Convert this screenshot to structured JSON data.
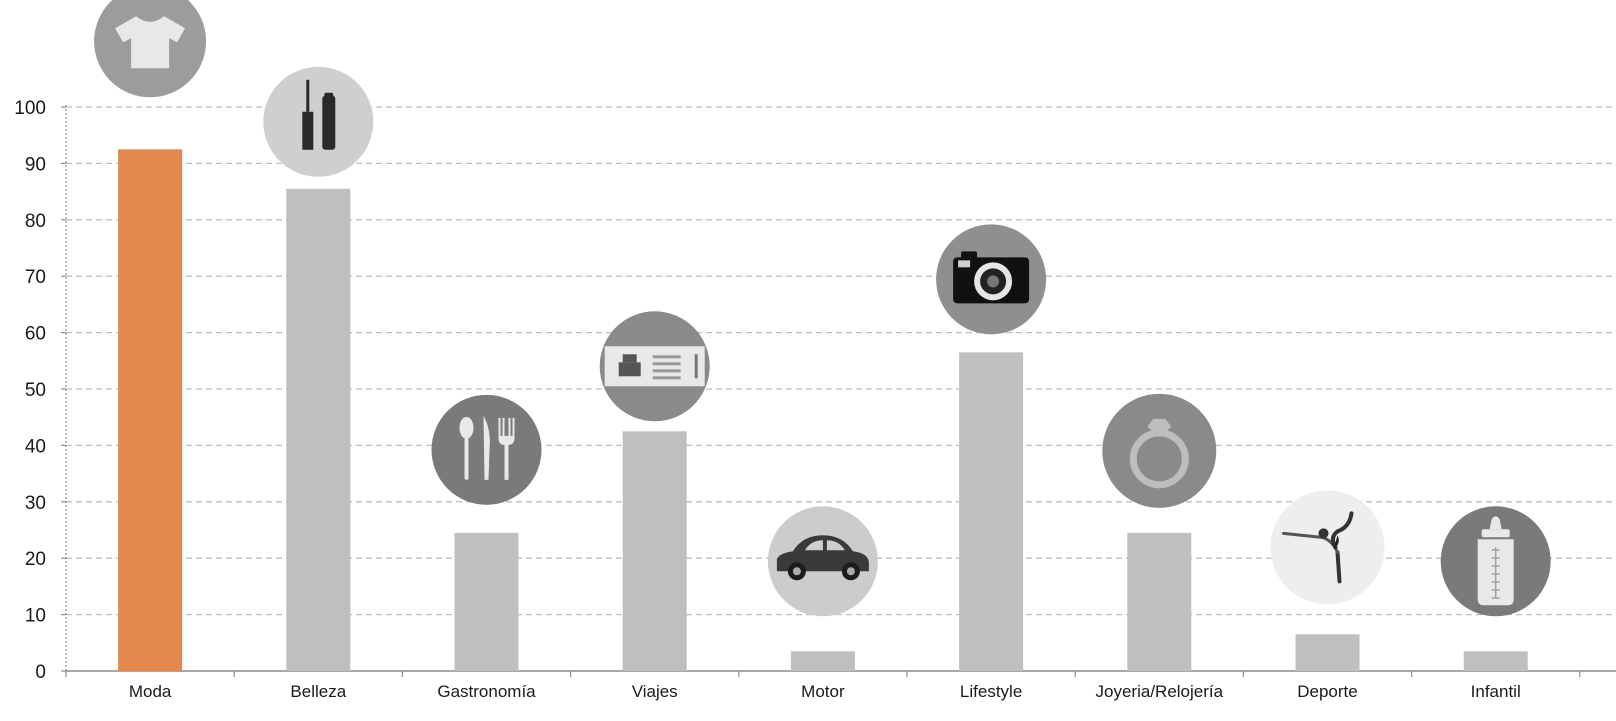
{
  "chart_data": {
    "type": "bar",
    "categories": [
      "Moda",
      "Belleza",
      "Gastronomía",
      "Viajes",
      "Motor",
      "Lifestyle",
      "Joyeria/Relojería",
      "Deporte",
      "Infantil"
    ],
    "values": [
      92.5,
      85.5,
      24.5,
      42.5,
      3.5,
      56.5,
      24.5,
      6.5,
      3.5
    ],
    "highlight_index": 0,
    "colors": {
      "bar": "#bfbfbf",
      "highlight": "#e3894d",
      "grid": "#bfbfbf",
      "axis": "#8c8c8c"
    },
    "icons": [
      "t-shirt-icon",
      "mascara-icon",
      "cutlery-icon",
      "ticket-icon",
      "car-icon",
      "camera-icon",
      "ring-icon",
      "yoga-icon",
      "baby-bottle-icon"
    ],
    "ylim": [
      0,
      100
    ],
    "yticks": [
      0,
      10,
      20,
      30,
      40,
      50,
      60,
      70,
      80,
      90,
      100
    ],
    "grid": true
  }
}
